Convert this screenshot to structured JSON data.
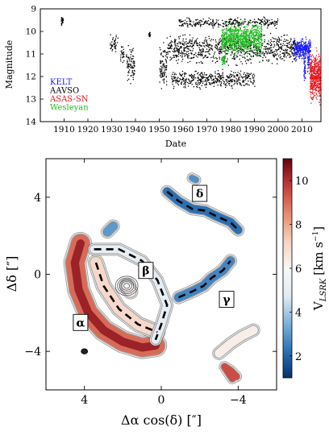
{
  "chart_data": [
    {
      "type": "scatter",
      "xlabel": "Date",
      "ylabel": "Magnitude",
      "xlim": [
        1900,
        2018
      ],
      "ylim": [
        14,
        9
      ],
      "y_inverted": true,
      "x_ticks": [
        1910,
        1920,
        1930,
        1940,
        1950,
        1960,
        1970,
        1980,
        1990,
        2000,
        2010
      ],
      "y_ticks": [
        9,
        10,
        11,
        12,
        13,
        14
      ],
      "legend_position": "bottom-left",
      "series": [
        {
          "name": "KELT",
          "color": "#1a1aff",
          "clusters": [
            {
              "x_range": [
                2006.5,
                2013.5
              ],
              "y_range": [
                10.2,
                11.3
              ]
            },
            {
              "x_range": [
                2010.6,
                2011.3
              ],
              "y_range": [
                10.5,
                12.5
              ]
            },
            {
              "x_range": [
                2012.2,
                2012.9
              ],
              "y_range": [
                10.6,
                12.0
              ]
            }
          ]
        },
        {
          "name": "AAVSO",
          "color": "#000000",
          "clusters": [
            {
              "x_range": [
                1908.5,
                1909.5
              ],
              "y_range": [
                9.2,
                9.8
              ]
            },
            {
              "x_range": [
                1929.0,
                1932.5
              ],
              "y_range": [
                10.0,
                11.0
              ]
            },
            {
              "x_range": [
                1933.5,
                1935.0
              ],
              "y_range": [
                10.5,
                11.5
              ]
            },
            {
              "x_range": [
                1936.0,
                1939.5
              ],
              "y_range": [
                10.4,
                12.5
              ]
            },
            {
              "x_range": [
                1945.5,
                1946.0
              ],
              "y_range": [
                10.0,
                10.3
              ]
            },
            {
              "x_range": [
                1950.0,
                1953.0
              ],
              "y_range": [
                10.3,
                12.8
              ]
            },
            {
              "x_range": [
                1953.0,
                2009.0
              ],
              "y_range": [
                9.9,
                11.6
              ]
            },
            {
              "x_range": [
                1958.0,
                2000.0
              ],
              "y_range": [
                9.3,
                9.9
              ]
            },
            {
              "x_range": [
                1955.0,
                1990.0
              ],
              "y_range": [
                11.6,
                12.6
              ]
            }
          ]
        },
        {
          "name": "ASAS-SN",
          "color": "#e8141a",
          "clusters": [
            {
              "x_range": [
                2013.2,
                2017.8
              ],
              "y_range": [
                10.6,
                13.4
              ]
            }
          ]
        },
        {
          "name": "Wesleyan",
          "color": "#22bb22",
          "clusters": [
            {
              "x_range": [
                1976.0,
                1993.0
              ],
              "y_range": [
                9.4,
                11.2
              ]
            },
            {
              "x_range": [
                1976.0,
                1977.5
              ],
              "y_range": [
                11.0,
                11.6
              ]
            }
          ]
        }
      ]
    },
    {
      "type": "heatmap",
      "xlabel": "Δα cos(δ) [″]",
      "ylabel": "Δδ [″]",
      "xlim": [
        6,
        -6
      ],
      "ylim": [
        -6,
        6
      ],
      "x_ticks": [
        4,
        0,
        -4
      ],
      "y_ticks": [
        4,
        0,
        -4
      ],
      "colorbar": {
        "label_main": "V",
        "label_sub": "LSRK",
        "label_units": "[km s",
        "label_exp": "−1",
        "label_close": "]",
        "range": [
          1,
          11
        ],
        "ticks": [
          2,
          4,
          6,
          8,
          10
        ],
        "colors": [
          "#08306b",
          "#2b73b6",
          "#7fb2d8",
          "#e2ecf4",
          "#f7f7f7",
          "#f6d2bf",
          "#e58b6a",
          "#c43c3c",
          "#67000d"
        ]
      },
      "annotations": [
        {
          "label": "δ",
          "x": -2.0,
          "y": 4.2
        },
        {
          "label": "β",
          "x": 0.8,
          "y": 0.2
        },
        {
          "label": "γ",
          "x": -3.4,
          "y": -1.3
        },
        {
          "label": "α",
          "x": 4.2,
          "y": -2.5
        }
      ],
      "regions": [
        {
          "name": "alpha-arc",
          "velocity": 9.0,
          "points": [
            [
              4.2,
              1.6
            ],
            [
              4.5,
              0.6
            ],
            [
              4.3,
              -0.8
            ],
            [
              3.8,
              -2.0
            ],
            [
              3.0,
              -2.9
            ],
            [
              2.0,
              -3.5
            ],
            [
              1.0,
              -3.8
            ],
            [
              0.3,
              -3.7
            ]
          ]
        },
        {
          "name": "alpha-inner",
          "velocity": 7.0,
          "points": [
            [
              3.4,
              0.6
            ],
            [
              3.0,
              -0.6
            ],
            [
              2.2,
              -1.8
            ],
            [
              1.2,
              -2.6
            ],
            [
              0.2,
              -3.0
            ]
          ]
        },
        {
          "name": "beta-arc",
          "velocity": 5.0,
          "points": [
            [
              3.5,
              1.3
            ],
            [
              2.2,
              1.3
            ],
            [
              1.0,
              0.7
            ],
            [
              0.2,
              -0.3
            ],
            [
              -0.3,
              -1.6
            ],
            [
              0.0,
              -2.6
            ],
            [
              0.3,
              -3.4
            ]
          ]
        },
        {
          "name": "core",
          "velocity": 6.2,
          "points": [
            [
              1.8,
              -0.6
            ],
            [
              1.6,
              -0.9
            ]
          ]
        },
        {
          "name": "delta-filament",
          "velocity": 2.2,
          "points": [
            [
              -0.3,
              4.3
            ],
            [
              -0.9,
              3.8
            ],
            [
              -1.6,
              3.4
            ],
            [
              -2.3,
              3.3
            ],
            [
              -2.9,
              3.0
            ],
            [
              -3.6,
              2.7
            ],
            [
              -4.0,
              2.3
            ]
          ]
        },
        {
          "name": "gamma-filament",
          "velocity": 2.6,
          "points": [
            [
              -0.9,
              -1.2
            ],
            [
              -1.6,
              -0.9
            ],
            [
              -2.2,
              -0.6
            ],
            [
              -2.6,
              -0.2
            ],
            [
              -3.2,
              0.2
            ],
            [
              -3.6,
              0.7
            ]
          ]
        },
        {
          "name": "north-clump",
          "velocity": 3.0,
          "points": [
            [
              2.5,
              2.5
            ],
            [
              2.8,
              2.2
            ]
          ]
        },
        {
          "name": "top-knot",
          "velocity": 2.8,
          "points": [
            [
              -1.6,
              5.0
            ],
            [
              -1.8,
              4.9
            ]
          ]
        },
        {
          "name": "southeast-blob",
          "velocity": 6.3,
          "points": [
            [
              -3.0,
              -4.1
            ],
            [
              -3.6,
              -3.6
            ],
            [
              -4.2,
              -3.2
            ],
            [
              -4.8,
              -2.9
            ]
          ]
        },
        {
          "name": "red-clump",
          "velocity": 9.5,
          "points": [
            [
              -3.9,
              -5.3
            ],
            [
              -3.6,
              -5.0
            ],
            [
              -3.3,
              -4.8
            ],
            [
              -3.7,
              -5.4
            ]
          ]
        }
      ],
      "beam": {
        "x": 4.0,
        "y": -4.0
      }
    }
  ]
}
